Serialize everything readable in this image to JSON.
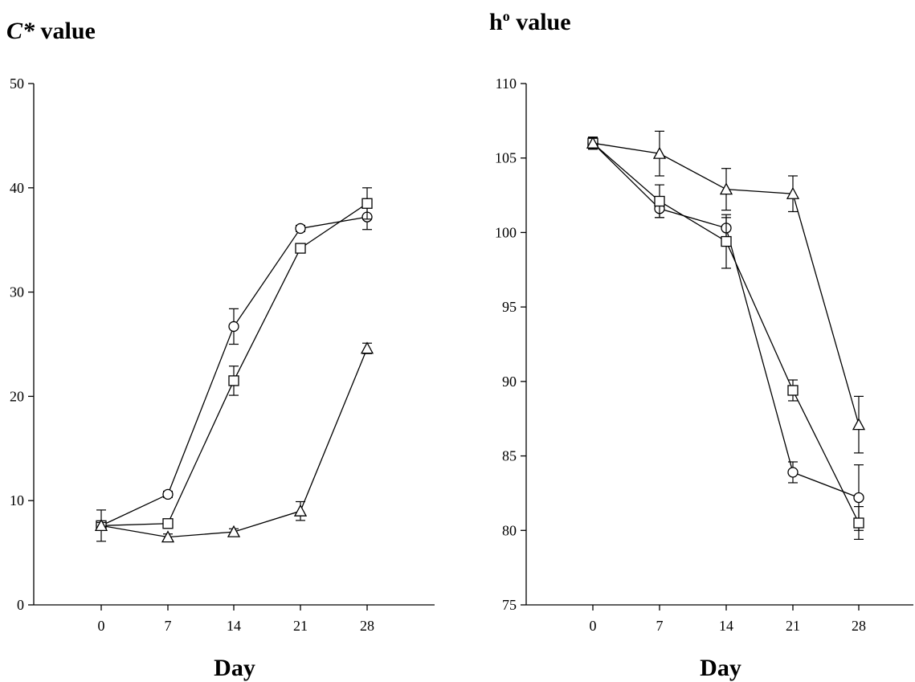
{
  "chart_data": [
    {
      "type": "line",
      "title_italic": "C*",
      "title_rest": " value",
      "xlabel": "Day",
      "ylabel": "",
      "x": [
        0,
        7,
        14,
        21,
        28
      ],
      "xticks": [
        "0",
        "7",
        "14",
        "21",
        "28"
      ],
      "ylim": [
        0,
        50
      ],
      "yticks": [
        "0",
        "10",
        "20",
        "30",
        "40",
        "50"
      ],
      "grid": false,
      "series": [
        {
          "marker": "circle",
          "values": [
            7.6,
            10.6,
            26.7,
            36.1,
            37.2
          ],
          "errors": [
            1.5,
            0.3,
            1.7,
            0.3,
            1.2
          ]
        },
        {
          "marker": "square",
          "values": [
            7.6,
            7.8,
            21.5,
            34.2,
            38.5
          ],
          "errors": [
            0.3,
            0.3,
            1.4,
            0.3,
            1.5
          ]
        },
        {
          "marker": "triangle",
          "values": [
            7.6,
            6.5,
            7.0,
            9.0,
            24.6
          ],
          "errors": [
            0.3,
            0.3,
            0.3,
            0.9,
            0.5
          ]
        }
      ]
    },
    {
      "type": "line",
      "title_main": "h",
      "title_sup": "o",
      "title_rest": " value",
      "xlabel": "Day",
      "ylabel": "",
      "x": [
        0,
        7,
        14,
        21,
        28
      ],
      "xticks": [
        "0",
        "7",
        "14",
        "21",
        "28"
      ],
      "ylim": [
        75,
        110
      ],
      "yticks": [
        "75",
        "80",
        "85",
        "90",
        "95",
        "100",
        "105",
        "110"
      ],
      "grid": false,
      "series": [
        {
          "marker": "circle",
          "values": [
            106.0,
            101.6,
            100.3,
            83.9,
            82.2
          ],
          "errors": [
            0.4,
            0.6,
            0.7,
            0.7,
            2.2
          ]
        },
        {
          "marker": "square",
          "values": [
            106.0,
            102.1,
            99.4,
            89.4,
            80.5
          ],
          "errors": [
            0.4,
            1.1,
            1.8,
            0.7,
            1.1
          ]
        },
        {
          "marker": "triangle",
          "values": [
            106.0,
            105.3,
            102.9,
            102.6,
            87.1
          ],
          "errors": [
            0.4,
            1.5,
            1.4,
            1.2,
            1.9
          ]
        }
      ]
    }
  ]
}
